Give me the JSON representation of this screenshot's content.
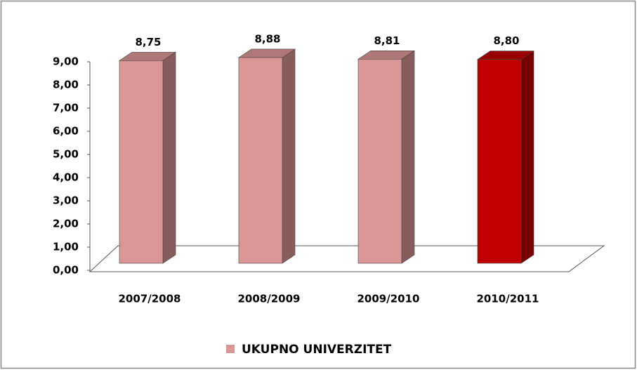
{
  "chart_data": {
    "type": "bar3d",
    "categories": [
      "2007/2008",
      "2008/2009",
      "2009/2010",
      "2010/2011"
    ],
    "series": [
      {
        "name": "UKUPNO UNIVERZITET",
        "color": "#d99694",
        "colors": [
          "#d99694",
          "#d99694",
          "#d99694",
          "#c00000"
        ],
        "values": [
          8.75,
          8.88,
          8.81,
          8.8
        ],
        "value_labels": [
          "8,75",
          "8,88",
          "8,81",
          "8,80"
        ]
      }
    ],
    "ylim": [
      0,
      9
    ],
    "yticks": [
      {
        "value": 0,
        "label": "0,00"
      },
      {
        "value": 1,
        "label": "1,00"
      },
      {
        "value": 2,
        "label": "2,00"
      },
      {
        "value": 3,
        "label": "3,00"
      },
      {
        "value": 4,
        "label": "4,00"
      },
      {
        "value": 5,
        "label": "5,00"
      },
      {
        "value": 6,
        "label": "6,00"
      },
      {
        "value": 7,
        "label": "7,00"
      },
      {
        "value": 8,
        "label": "8,00"
      },
      {
        "value": 9,
        "label": "9,00"
      }
    ],
    "legend": "bottom"
  }
}
